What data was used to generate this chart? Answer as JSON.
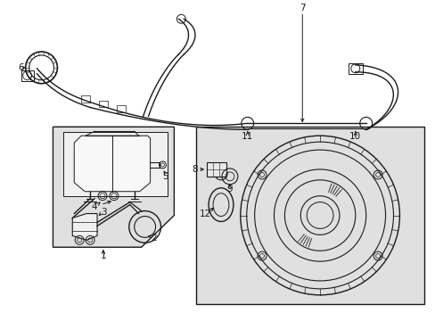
{
  "background_color": "#ffffff",
  "line_color": "#1a1a1a",
  "gray_bg": "#e0e0e0",
  "fig_width": 4.89,
  "fig_height": 3.6,
  "dpi": 100
}
